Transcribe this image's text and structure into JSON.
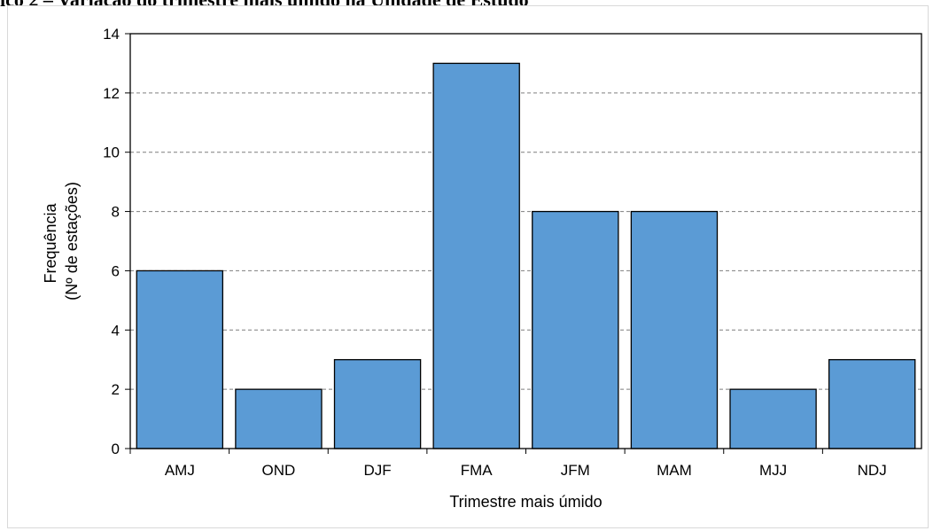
{
  "header": {
    "title": "ico 2 – Variação do trimestre mais úmido na Unidade de Estudo"
  },
  "chart_data": {
    "type": "bar",
    "categories": [
      "AMJ",
      "OND",
      "DJF",
      "FMA",
      "JFM",
      "MAM",
      "MJJ",
      "NDJ"
    ],
    "values": [
      6,
      2,
      3,
      13,
      8,
      8,
      2,
      3
    ],
    "xlabel": "Trimestre mais úmido",
    "ylabel_lines": [
      "Frequência",
      "(Nº de estações)"
    ],
    "ylim": [
      0,
      14
    ],
    "yticks": [
      0,
      2,
      4,
      6,
      8,
      10,
      12,
      14
    ],
    "grid": "horizontal-dashed",
    "legend": "none",
    "colors": {
      "bar": "#5b9bd5",
      "bar_edge": "#000000",
      "grid": "#7f7f7f"
    }
  }
}
